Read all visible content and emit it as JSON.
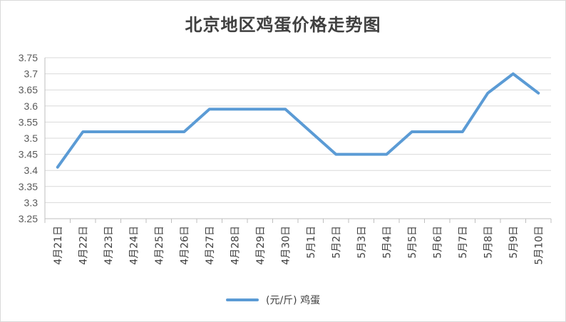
{
  "chart_data": {
    "type": "line",
    "title": "北京地区鸡蛋价格走势图",
    "categories": [
      "4月21日",
      "4月22日",
      "4月23日",
      "4月24日",
      "4月25日",
      "4月26日",
      "4月27日",
      "4月28日",
      "4月29日",
      "4月30日",
      "5月1日",
      "5月2日",
      "5月3日",
      "5月4日",
      "5月5日",
      "5月6日",
      "5月7日",
      "5月8日",
      "5月9日",
      "5月10日"
    ],
    "series": [
      {
        "name": "(元/斤) 鸡蛋",
        "color": "#5b9bd5",
        "values": [
          3.41,
          3.52,
          3.52,
          3.52,
          3.52,
          3.52,
          3.59,
          3.59,
          3.59,
          3.59,
          3.52,
          3.45,
          3.45,
          3.45,
          3.52,
          3.52,
          3.52,
          3.64,
          3.7,
          3.64
        ]
      }
    ],
    "ylim": [
      3.25,
      3.75
    ],
    "yticks": [
      "3.25",
      "3.3",
      "3.35",
      "3.4",
      "3.45",
      "3.5",
      "3.55",
      "3.6",
      "3.65",
      "3.7",
      "3.75"
    ],
    "grid": true,
    "legend_position": "bottom"
  }
}
